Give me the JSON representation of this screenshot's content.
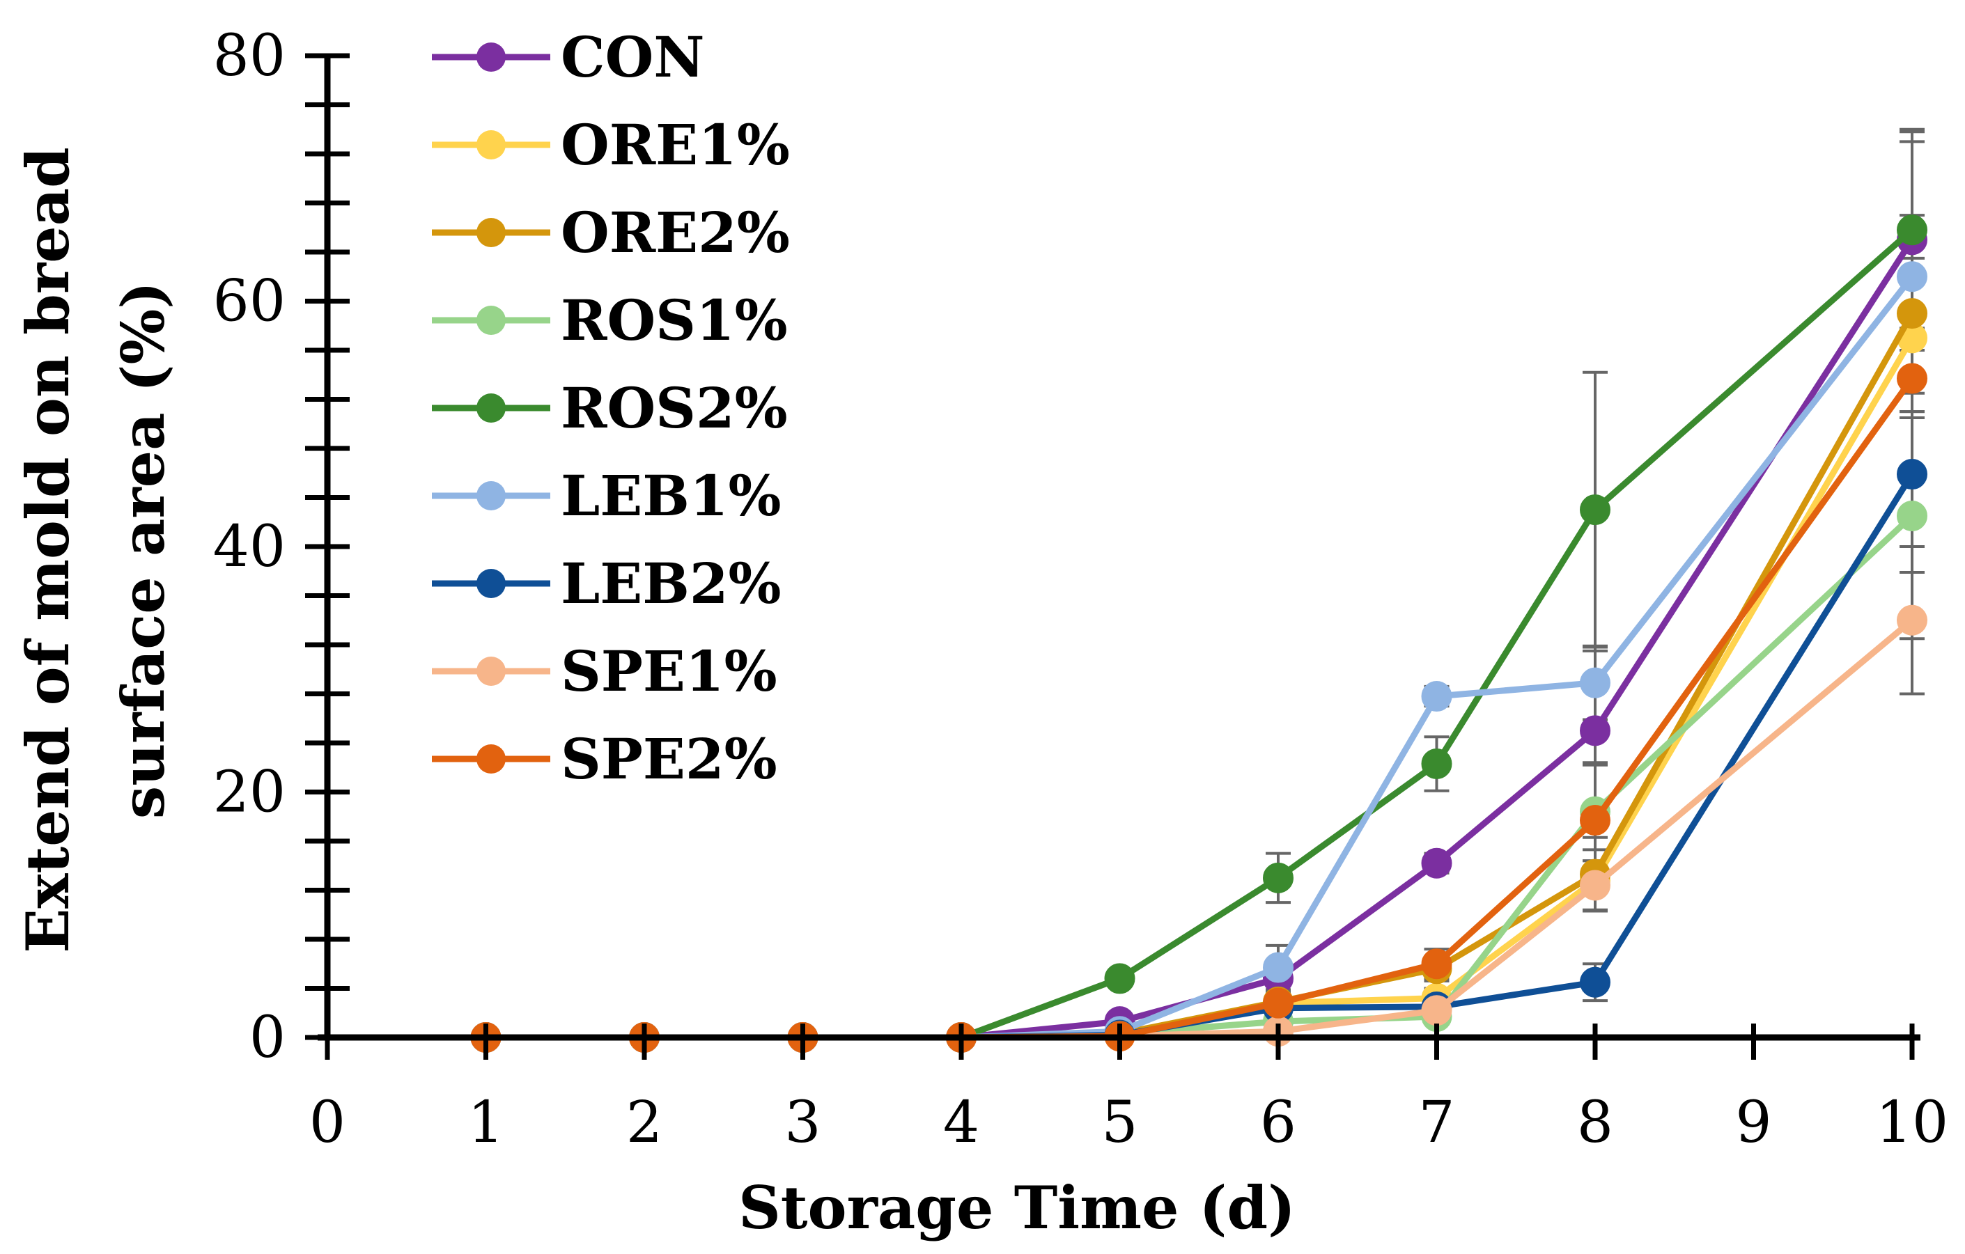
{
  "chart_data": {
    "type": "line",
    "title": "",
    "xlabel": "Storage Time (d)",
    "ylabel_line1": "Extend of mold on bread",
    "ylabel_line2": "surface area (%)",
    "xlim": [
      0,
      10
    ],
    "ylim": [
      0,
      80
    ],
    "x_ticks": [
      "0",
      "1",
      "2",
      "3",
      "4",
      "5",
      "6",
      "7",
      "8",
      "9",
      "10"
    ],
    "y_ticks": [
      "0",
      "20",
      "40",
      "60",
      "80"
    ],
    "x": [
      1,
      2,
      3,
      4,
      5,
      6,
      7,
      8,
      10
    ],
    "legend_position": "top-left",
    "series": [
      {
        "name": "CON",
        "color": "#7B2FA0",
        "values": [
          0,
          0,
          0,
          0,
          1.3,
          4.8,
          14.2,
          25.0,
          65.0
        ],
        "errors": [
          0,
          0,
          0,
          0,
          0.3,
          1.0,
          0.8,
          6.5,
          9.0
        ]
      },
      {
        "name": "ORE1%",
        "color": "#FFD34D",
        "values": [
          0,
          0,
          0,
          0,
          0.3,
          2.8,
          3.2,
          12.8,
          57.0
        ],
        "errors": [
          0,
          0,
          0,
          0,
          0.2,
          0.8,
          0.8,
          2.5,
          6.5
        ]
      },
      {
        "name": "ORE2%",
        "color": "#D4960C",
        "values": [
          0,
          0,
          0,
          0,
          0.3,
          2.9,
          5.6,
          13.3,
          59.0
        ],
        "errors": [
          0,
          0,
          0,
          0,
          0.2,
          0.8,
          1.0,
          3.0,
          8.0
        ]
      },
      {
        "name": "ROS1%",
        "color": "#97D48A",
        "values": [
          0,
          0,
          0,
          0,
          0.3,
          1.3,
          1.7,
          18.4,
          42.5
        ],
        "errors": [
          0,
          0,
          0,
          0,
          0.2,
          0.5,
          0.5,
          4.0,
          10.0
        ]
      },
      {
        "name": "ROS2%",
        "color": "#3A8A2E",
        "values": [
          0,
          0,
          0,
          0,
          4.8,
          13.0,
          22.3,
          43.0,
          65.8
        ],
        "errors": [
          0,
          0,
          0,
          0,
          0.5,
          2.0,
          2.2,
          11.2,
          8.0
        ]
      },
      {
        "name": "LEB1%",
        "color": "#8FB4E3",
        "values": [
          0,
          0,
          0,
          0,
          0.5,
          5.7,
          27.8,
          28.9,
          62.0
        ],
        "errors": [
          0,
          0,
          0,
          0,
          0.3,
          1.8,
          0.8,
          3.0,
          11.0
        ]
      },
      {
        "name": "LEB2%",
        "color": "#0F4F96",
        "values": [
          0,
          0,
          0,
          0,
          0.2,
          2.4,
          2.5,
          4.5,
          45.9
        ],
        "errors": [
          0,
          0,
          0,
          0,
          0.2,
          0.5,
          0.5,
          1.5,
          8.0
        ]
      },
      {
        "name": "SPE1%",
        "color": "#F7B58A",
        "values": [
          0,
          0,
          0,
          0,
          0.1,
          0.5,
          2.2,
          12.4,
          34.0
        ],
        "errors": [
          0,
          0,
          0,
          0,
          0.1,
          0.3,
          0.5,
          2.0,
          6.0
        ]
      },
      {
        "name": "SPE2%",
        "color": "#E2620F",
        "values": [
          0,
          0,
          0,
          0,
          0.1,
          2.8,
          6.0,
          17.7,
          53.7
        ],
        "errors": [
          0,
          0,
          0,
          0,
          0.1,
          0.8,
          1.2,
          4.5,
          8.0
        ]
      }
    ]
  }
}
